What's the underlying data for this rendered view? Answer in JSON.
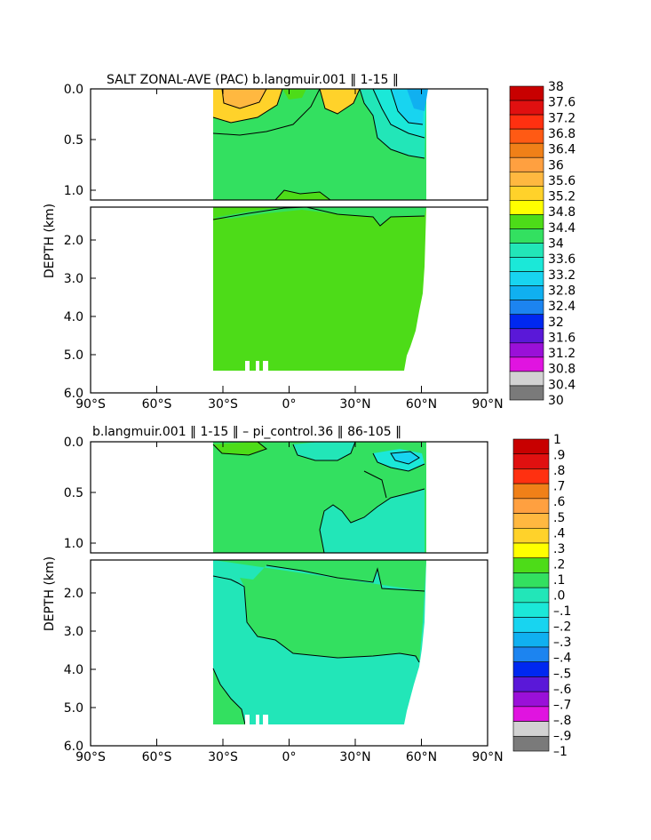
{
  "chart_data": [
    {
      "type": "heatmap",
      "title": "SALT ZONAL-AVE (PAC) b.langmuir.001 ‖ 1-15 ‖",
      "ylabel": "DEPTH (km)",
      "xlabel": "",
      "x_ticks": [
        "90°S",
        "60°S",
        "30°S",
        "0°",
        "30°N",
        "60°N",
        "90°N"
      ],
      "y_ticks_upper": [
        "0.0",
        "0.5",
        "1.0"
      ],
      "y_ticks_lower": [
        "2.0",
        "3.0",
        "4.0",
        "5.0",
        "6.0"
      ],
      "xlim": [
        -90,
        90
      ],
      "ylim_km": [
        0,
        6
      ],
      "colorbar_levels": [
        "38",
        "37.6",
        "37.2",
        "36.8",
        "36.4",
        "36",
        "35.6",
        "35.2",
        "34.8",
        "34.4",
        "34",
        "33.6",
        "33.2",
        "32.8",
        "32.4",
        "32",
        "31.6",
        "31.2",
        "30.8",
        "30.4",
        "30"
      ],
      "colorbar_colors": [
        "#c80000",
        "#e01010",
        "#ff3010",
        "#ff5a14",
        "#f08018",
        "#ffa040",
        "#ffb840",
        "#ffd22a",
        "#ffff00",
        "#4ddc18",
        "#33e060",
        "#22e6b8",
        "#1be8d8",
        "#18d4f0",
        "#10b0f0",
        "#1c84f0",
        "#0028f0",
        "#5a18d8",
        "#9a10d8",
        "#e014e0",
        "#d2d2d2",
        "#7a7a7a"
      ]
    },
    {
      "type": "heatmap",
      "title": "b.langmuir.001 ‖ 1-15 ‖ – pi_control.36 ‖ 86-105 ‖",
      "ylabel": "DEPTH (km)",
      "xlabel": "",
      "x_ticks": [
        "90°S",
        "60°S",
        "30°S",
        "0°",
        "30°N",
        "60°N",
        "90°N"
      ],
      "y_ticks_upper": [
        "0.0",
        "0.5",
        "1.0"
      ],
      "y_ticks_lower": [
        "2.0",
        "3.0",
        "4.0",
        "5.0",
        "6.0"
      ],
      "xlim": [
        -90,
        90
      ],
      "ylim_km": [
        0,
        6
      ],
      "colorbar_levels": [
        "1",
        ".9",
        ".8",
        ".7",
        ".6",
        ".5",
        ".4",
        ".3",
        ".2",
        ".1",
        ".0",
        "–.1",
        "–.2",
        "–.3",
        "–.4",
        "–.5",
        "–.6",
        "–.7",
        "–.8",
        "–.9",
        "–1"
      ],
      "colorbar_colors": [
        "#c80000",
        "#e01010",
        "#ff3010",
        "#f08018",
        "#ffa040",
        "#ffb840",
        "#ffd22a",
        "#ffff00",
        "#4ddc18",
        "#33e060",
        "#22e6b8",
        "#1be8d8",
        "#18d4f0",
        "#10b0f0",
        "#1c84f0",
        "#0028f0",
        "#5a18d8",
        "#9a10d8",
        "#e014e0",
        "#d2d2d2",
        "#7a7a7a"
      ]
    }
  ]
}
